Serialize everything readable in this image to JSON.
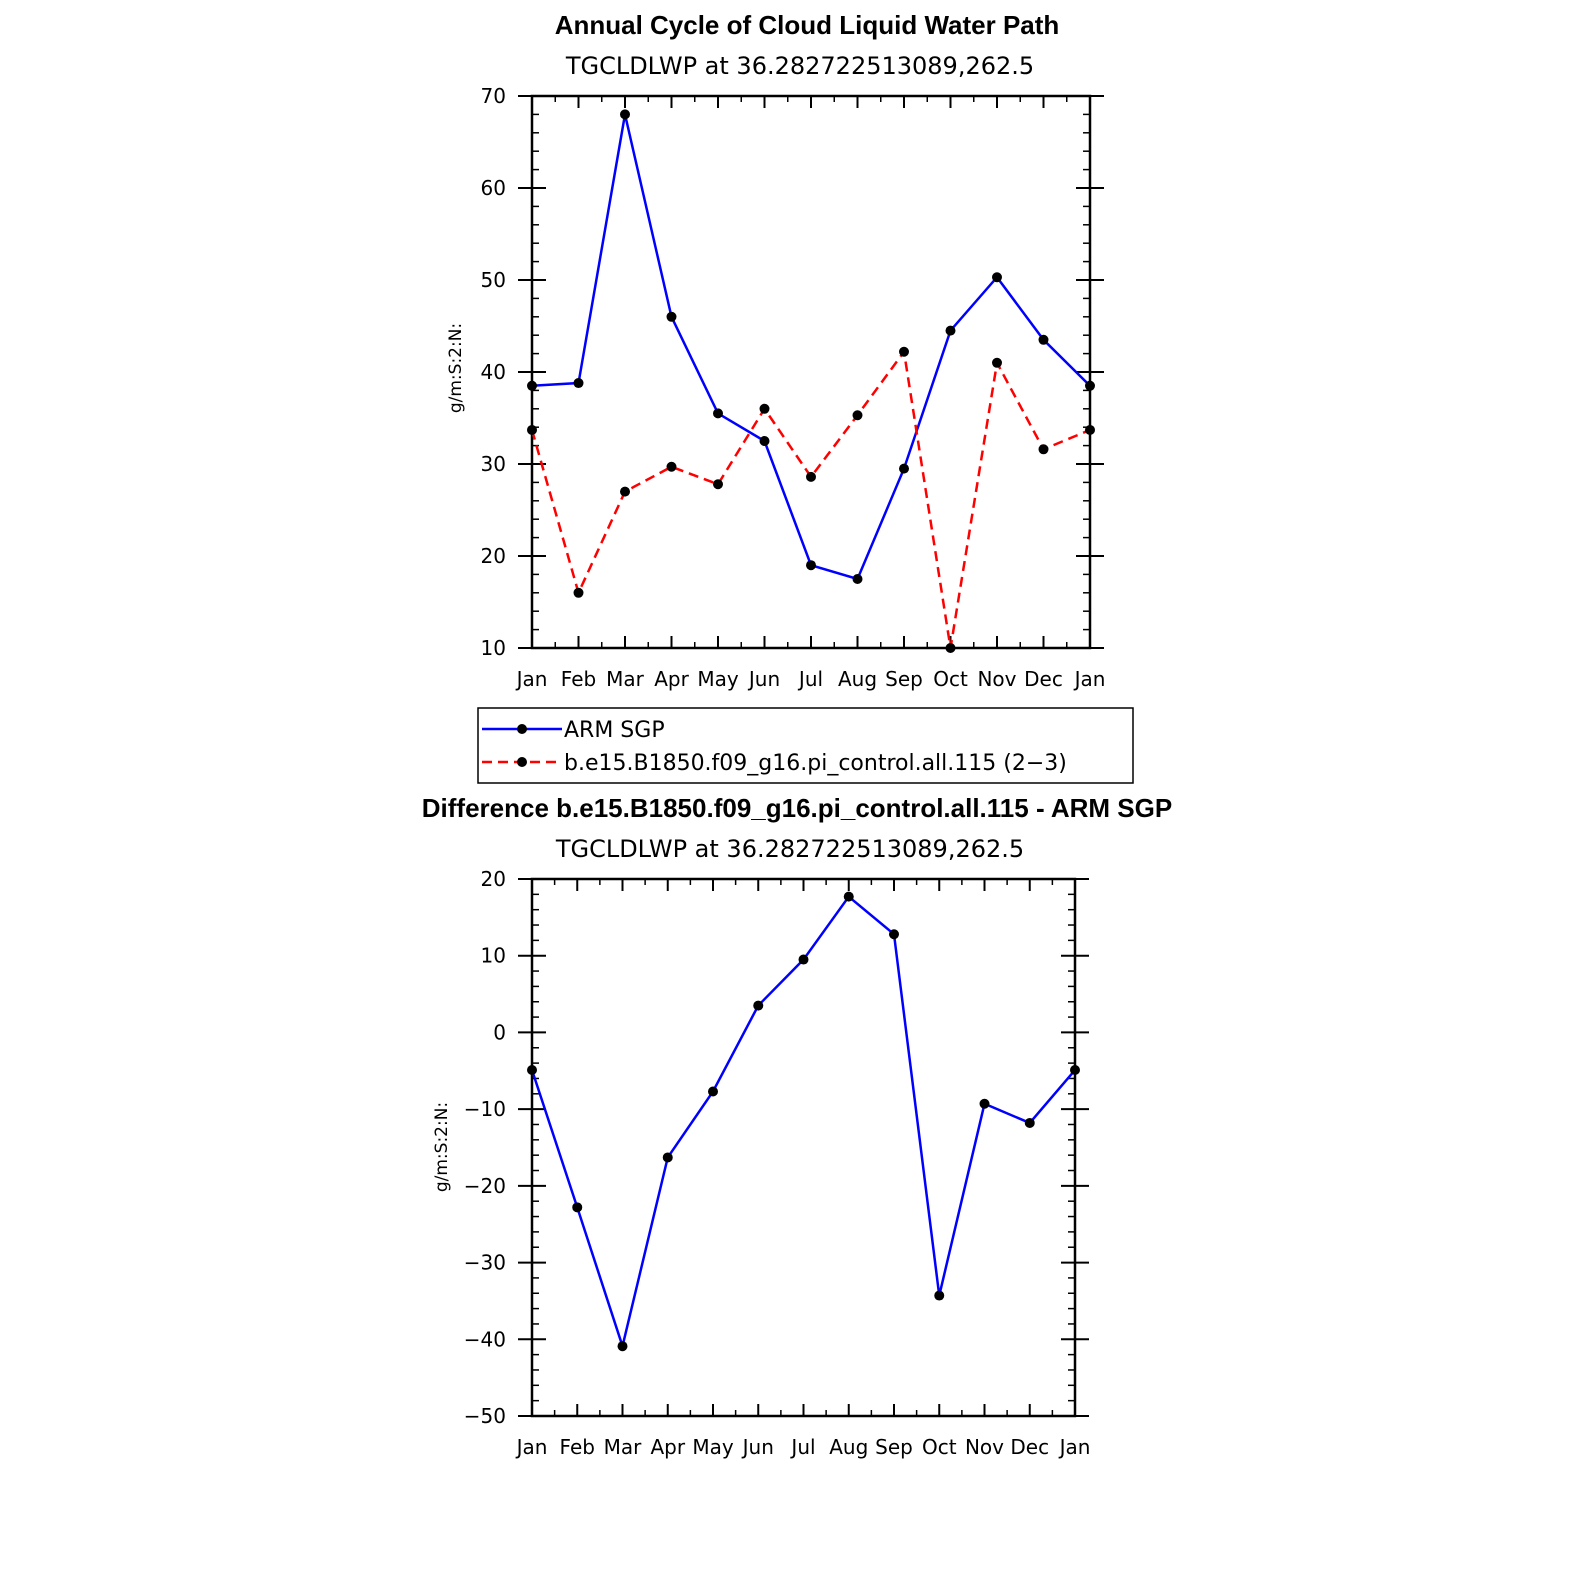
{
  "chart_data": [
    {
      "type": "line",
      "title": "Annual Cycle of Cloud Liquid Water Path",
      "subtitle": "TGCLDLWP  at  36.282722513089,262.5",
      "ylabel": "g/m:S:2:N:",
      "xlabel": "",
      "categories": [
        "Jan",
        "Feb",
        "Mar",
        "Apr",
        "May",
        "Jun",
        "Jul",
        "Aug",
        "Sep",
        "Oct",
        "Nov",
        "Dec",
        "Jan"
      ],
      "ylim": [
        10,
        70
      ],
      "yticks": [
        10,
        20,
        30,
        40,
        50,
        60,
        70
      ],
      "series": [
        {
          "name": "ARM  SGP",
          "color": "#0000ff",
          "dash": "solid",
          "values": [
            38.5,
            38.8,
            68.0,
            46.0,
            35.5,
            32.5,
            19.0,
            17.5,
            29.5,
            44.5,
            50.3,
            43.5,
            38.5
          ]
        },
        {
          "name": "b.e15.B1850.f09_g16.pi_control.all.115 (2−3)",
          "color": "#ff0000",
          "dash": "dashed",
          "values": [
            33.7,
            16.0,
            27.0,
            29.7,
            27.8,
            36.0,
            28.6,
            35.3,
            42.2,
            10.0,
            41.0,
            31.6,
            33.7
          ]
        }
      ],
      "legend": "below"
    },
    {
      "type": "line",
      "title": "Difference b.e15.B1850.f09_g16.pi_control.all.115 - ARM SGP",
      "subtitle": "TGCLDLWP  at  36.282722513089,262.5",
      "ylabel": "g/m:S:2:N:",
      "xlabel": "",
      "categories": [
        "Jan",
        "Feb",
        "Mar",
        "Apr",
        "May",
        "Jun",
        "Jul",
        "Aug",
        "Sep",
        "Oct",
        "Nov",
        "Dec",
        "Jan"
      ],
      "ylim": [
        -50,
        20
      ],
      "yticks": [
        -50,
        -40,
        -30,
        -20,
        -10,
        0,
        10,
        20
      ],
      "series": [
        {
          "color": "#0000ff",
          "dash": "solid",
          "values": [
            -4.9,
            -22.8,
            -40.9,
            -16.3,
            -7.7,
            3.5,
            9.5,
            17.7,
            12.8,
            -34.3,
            -9.3,
            -11.8,
            -4.9
          ]
        }
      ]
    }
  ]
}
